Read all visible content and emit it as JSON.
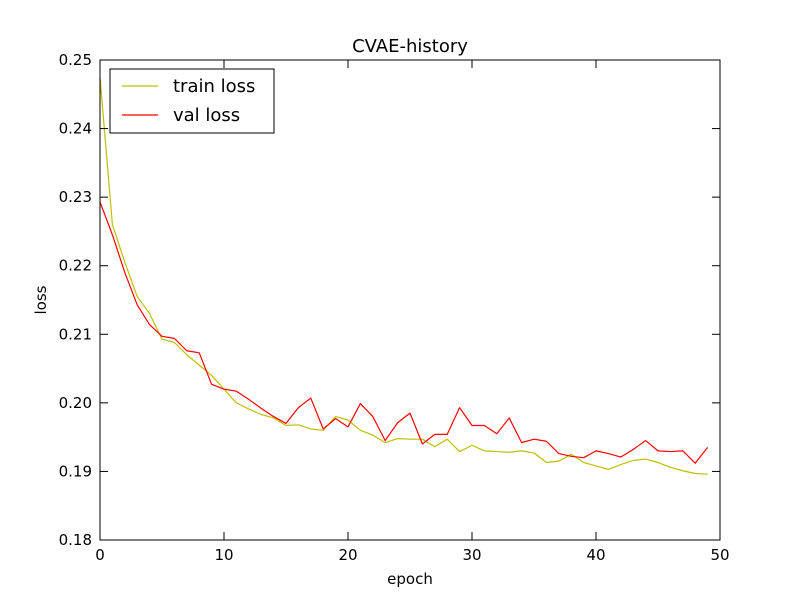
{
  "chart_data": {
    "type": "line",
    "title": "CVAE-history",
    "xlabel": "epoch",
    "ylabel": "loss",
    "xlim": [
      0,
      50
    ],
    "ylim": [
      0.18,
      0.25
    ],
    "x_ticks": [
      0,
      10,
      20,
      30,
      40,
      50
    ],
    "x_tick_labels": [
      "0",
      "10",
      "20",
      "30",
      "40",
      "50"
    ],
    "y_ticks": [
      0.18,
      0.19,
      0.2,
      0.21,
      0.22,
      0.23,
      0.24,
      0.25
    ],
    "y_tick_labels": [
      "0.18",
      "0.19",
      "0.20",
      "0.21",
      "0.22",
      "0.23",
      "0.24",
      "0.25"
    ],
    "grid": false,
    "legend": {
      "placement": "upper-left"
    },
    "x": [
      0,
      1,
      2,
      3,
      4,
      5,
      6,
      7,
      8,
      9,
      10,
      11,
      12,
      13,
      14,
      15,
      16,
      17,
      18,
      19,
      20,
      21,
      22,
      23,
      24,
      25,
      26,
      27,
      28,
      29,
      30,
      31,
      32,
      33,
      34,
      35,
      36,
      37,
      38,
      39,
      40,
      41,
      42,
      43,
      44,
      45,
      46,
      47,
      48,
      49
    ],
    "series": [
      {
        "name": "train loss",
        "color": "#bfbf00",
        "values": [
          0.2475,
          0.226,
          0.2205,
          0.2155,
          0.213,
          0.2093,
          0.2088,
          0.207,
          0.2055,
          0.204,
          0.202,
          0.2,
          0.1991,
          0.1983,
          0.1978,
          0.1967,
          0.1968,
          0.1962,
          0.196,
          0.198,
          0.1975,
          0.196,
          0.1953,
          0.1942,
          0.1948,
          0.1947,
          0.1947,
          0.1936,
          0.1947,
          0.1929,
          0.1938,
          0.193,
          0.1929,
          0.1928,
          0.193,
          0.1927,
          0.1913,
          0.1915,
          0.1925,
          0.1913,
          0.1908,
          0.1903,
          0.191,
          0.1916,
          0.1918,
          0.1913,
          0.1906,
          0.1901,
          0.1897,
          0.1896
        ]
      },
      {
        "name": "val loss",
        "color": "#ff0000",
        "values": [
          0.2293,
          0.2245,
          0.219,
          0.2143,
          0.2114,
          0.2097,
          0.2094,
          0.2076,
          0.2073,
          0.2027,
          0.202,
          0.2017,
          0.2005,
          0.1992,
          0.198,
          0.197,
          0.1993,
          0.2007,
          0.1962,
          0.1977,
          0.1965,
          0.1999,
          0.198,
          0.1945,
          0.1971,
          0.1985,
          0.194,
          0.1954,
          0.1954,
          0.1993,
          0.1967,
          0.1967,
          0.1955,
          0.1978,
          0.1942,
          0.1947,
          0.1944,
          0.1926,
          0.1922,
          0.192,
          0.193,
          0.1926,
          0.1921,
          0.1932,
          0.1945,
          0.193,
          0.1929,
          0.193,
          0.1912,
          0.1935
        ]
      }
    ]
  }
}
